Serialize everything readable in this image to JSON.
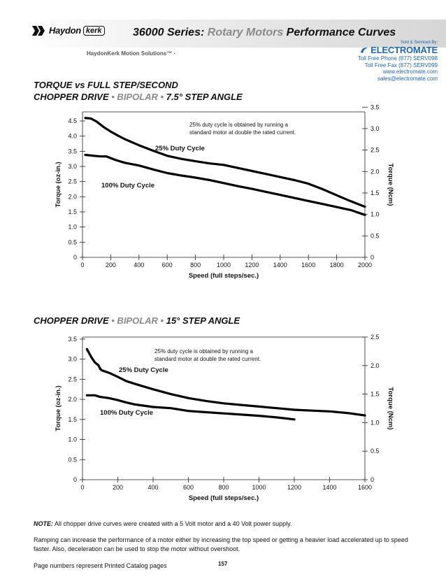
{
  "header": {
    "logo_text": "Haydon",
    "logo_kerk": "kerk",
    "series_title_a": "36000 Series:",
    "series_title_b": "Rotary Motors",
    "series_title_c": "Performance Curves",
    "sub_brand": "HaydonKerk Motion Solutions™ ·",
    "dealer": {
      "sold_by": "Sold & Serviced By:",
      "brand": "ELECTROMATE",
      "phone": "Toll Free Phone  (877) SERV098",
      "fax": "Toll Free Fax  (877) SERV099",
      "web": "www.electromate.com",
      "email": "sales@electromate.com"
    }
  },
  "sections": {
    "first_line1": "TORQUE vs FULL STEP/SECOND",
    "first_line2_a": "CHOPPER DRIVE",
    "first_line2_b": "• BIPOLAR •",
    "first_line2_c": "7.5° STEP ANGLE",
    "second_a": "CHOPPER DRIVE",
    "second_b": "• BIPOLAR •",
    "second_c": "15° STEP ANGLE"
  },
  "footer": {
    "note_label": "NOTE:",
    "note_text": " All chopper drive curves were created with a 5 Volt motor and a 40 Volt power supply.",
    "ramping": "Ramping can increase the performance of a motor either by increasing the top speed or getting a heavier load accelerated up to speed faster.  Also, deceleration can be used to stop the motor without overshoot.",
    "page_text": "Page numbers represent Printed Catalog pages",
    "page_number": "157"
  },
  "colors": {
    "curve": "#000000",
    "accent_gray": "#8a8a8a",
    "dealer_blue": "#1f66b0"
  },
  "chart_data": [
    {
      "type": "line",
      "xlabel": "Speed (full steps/sec.)",
      "ylabel": "Torque (oz-in.)",
      "ylabel_right": "Torque (Ncm)",
      "xlim": [
        0,
        2000
      ],
      "ylim": [
        0,
        4.8
      ],
      "ylim_right": [
        0,
        3.39
      ],
      "x_ticks": [
        0,
        200,
        400,
        600,
        800,
        1000,
        1200,
        1400,
        1600,
        1800,
        2000
      ],
      "y_ticks": [
        0,
        0.5,
        1.0,
        1.5,
        2.0,
        2.5,
        3.0,
        3.5,
        4.0,
        4.5
      ],
      "y_ticks_right": [
        0,
        0.5,
        1.0,
        1.5,
        2.0,
        2.5,
        3.0,
        3.5
      ],
      "annotation": "25% duty cycle is obtained by running a standard motor at double the rated current.",
      "grid": false,
      "series": [
        {
          "name": "25% Duty Cycle",
          "x": [
            20,
            60,
            100,
            150,
            200,
            250,
            300,
            400,
            500,
            600,
            700,
            800,
            900,
            1000,
            1100,
            1200,
            1300,
            1400,
            1500,
            1600,
            1700,
            1800,
            1900,
            2000
          ],
          "y": [
            4.6,
            4.58,
            4.48,
            4.3,
            4.15,
            4.02,
            3.9,
            3.7,
            3.52,
            3.35,
            3.25,
            3.17,
            3.1,
            3.05,
            2.95,
            2.85,
            2.75,
            2.65,
            2.55,
            2.43,
            2.25,
            2.05,
            1.85,
            1.67
          ]
        },
        {
          "name": "100% Duty Cycle",
          "x": [
            20,
            80,
            130,
            170,
            230,
            300,
            400,
            500,
            600,
            700,
            800,
            900,
            1000,
            1100,
            1200,
            1300,
            1400,
            1500,
            1600,
            1700,
            1800,
            1900,
            2000
          ],
          "y": [
            3.38,
            3.35,
            3.33,
            3.33,
            3.22,
            3.12,
            3.03,
            2.9,
            2.78,
            2.7,
            2.63,
            2.55,
            2.45,
            2.35,
            2.26,
            2.16,
            2.06,
            1.96,
            1.86,
            1.76,
            1.66,
            1.56,
            1.4
          ]
        }
      ],
      "series_labels": [
        "25% Duty Cycle",
        "100% Duty Cycle"
      ]
    },
    {
      "type": "line",
      "xlabel": "Speed (full steps/sec.)",
      "ylabel": "Torque (oz-in.)",
      "ylabel_right": "Torque (Ncm)",
      "xlim": [
        0,
        1600
      ],
      "ylim": [
        0,
        3.55
      ],
      "ylim_right": [
        0,
        2.5
      ],
      "x_ticks": [
        0,
        200,
        400,
        600,
        800,
        1000,
        1200,
        1400,
        1600
      ],
      "y_ticks": [
        0,
        0.5,
        1.0,
        1.5,
        2.0,
        2.5,
        3.0,
        3.5
      ],
      "y_ticks_right": [
        0,
        0.5,
        1.0,
        1.5,
        2.0,
        2.5
      ],
      "annotation": "25% duty cycle is obtained by running a standard motor at double the rated current.",
      "grid": false,
      "series": [
        {
          "name": "25% Duty Cycle",
          "x": [
            25,
            50,
            70,
            90,
            100,
            110,
            150,
            200,
            250,
            300,
            400,
            500,
            600,
            700,
            800,
            900,
            1000,
            1100,
            1200,
            1300,
            1400,
            1500,
            1600
          ],
          "y": [
            3.25,
            3.05,
            2.92,
            2.85,
            2.76,
            2.72,
            2.66,
            2.56,
            2.45,
            2.38,
            2.25,
            2.13,
            2.03,
            1.96,
            1.9,
            1.86,
            1.82,
            1.78,
            1.74,
            1.72,
            1.7,
            1.66,
            1.6
          ]
        },
        {
          "name": "100% Duty Cycle",
          "x": [
            25,
            70,
            100,
            150,
            200,
            250,
            300,
            400,
            500,
            600,
            700,
            800,
            900,
            1000,
            1100,
            1200
          ],
          "y": [
            2.1,
            2.1,
            2.06,
            2.03,
            1.98,
            1.92,
            1.87,
            1.81,
            1.78,
            1.71,
            1.68,
            1.65,
            1.62,
            1.59,
            1.55,
            1.5
          ]
        }
      ],
      "series_labels": [
        "25% Duty Cycle",
        "100% Duty Cycle"
      ]
    }
  ]
}
